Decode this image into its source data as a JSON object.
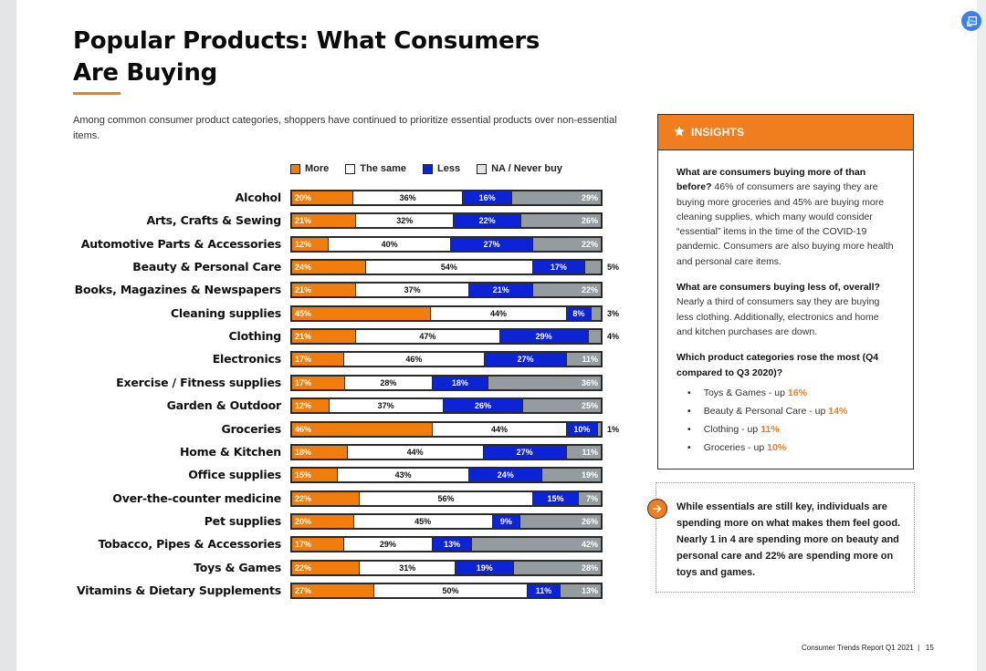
{
  "page": {
    "title": "Popular Products: What Consumers Are Buying",
    "subtitle": "Among common consumer product categories, shoppers have continued to prioritize essential products over non-essential items.",
    "footer": "Consumer Trends Report Q1 2021  |   15"
  },
  "colors": {
    "more": "#f07d0c",
    "same": "#ffffff",
    "less": "#0d23d6",
    "na": "#959c9f",
    "accent": "#f07d1e"
  },
  "chart_data": {
    "type": "bar",
    "orientation": "horizontal-stacked-100",
    "title": "",
    "xlabel": "",
    "ylabel": "",
    "legend_position": "top",
    "series_names": [
      "More",
      "The same",
      "Less",
      "NA / Never buy"
    ],
    "categories": [
      "Alcohol",
      "Arts, Crafts & Sewing",
      "Automotive Parts & Accessories",
      "Beauty & Personal Care",
      "Books, Magazines & Newspapers",
      "Cleaning supplies",
      "Clothing",
      "Electronics",
      "Exercise / Fitness supplies",
      "Garden & Outdoor",
      "Groceries",
      "Home & Kitchen",
      "Office supplies",
      "Over-the-counter medicine",
      "Pet supplies",
      "Tobacco, Pipes & Accessories",
      "Toys & Games",
      "Vitamins & Dietary Supplements"
    ],
    "series": [
      {
        "name": "More",
        "key": "more",
        "values": [
          20,
          21,
          12,
          24,
          21,
          45,
          21,
          17,
          17,
          12,
          46,
          18,
          15,
          22,
          20,
          17,
          22,
          27
        ]
      },
      {
        "name": "The same",
        "key": "same",
        "values": [
          36,
          32,
          40,
          54,
          37,
          44,
          47,
          46,
          28,
          37,
          44,
          44,
          43,
          56,
          45,
          29,
          31,
          50
        ]
      },
      {
        "name": "Less",
        "key": "less",
        "values": [
          16,
          22,
          27,
          17,
          21,
          8,
          29,
          27,
          18,
          26,
          10,
          27,
          24,
          15,
          9,
          13,
          19,
          11
        ]
      },
      {
        "name": "NA / Never buy",
        "key": "na",
        "values": [
          29,
          26,
          22,
          5,
          22,
          3,
          4,
          11,
          36,
          25,
          1,
          11,
          19,
          7,
          26,
          42,
          28,
          13
        ]
      }
    ],
    "xlim": [
      0,
      100
    ],
    "unit": "%"
  },
  "insights": {
    "header": "INSIGHTS",
    "q1_bold": "What are consumers buying more of than before?",
    "q1_text": " 46% of consumers are saying they are buying more groceries and 45% are buying more cleaning supplies, which many would consider “essential” items in the time of the COVID-19 pandemic. Consumers are also buying more health and personal care items.",
    "q2_bold": "What are consumers buying less of, overall?",
    "q2_text": "Nearly a third of consumers say they are buying less clothing. Additionally, electronics and home and kitchen purchases are down.",
    "q3_bold": "Which product categories rose the most (Q4 compared to Q3 2020)?",
    "rose": [
      {
        "label": "Toys & Games - up ",
        "pct": "16%"
      },
      {
        "label": "Beauty & Personal Care - up ",
        "pct": "14%"
      },
      {
        "label": "Clothing - up ",
        "pct": "11%"
      },
      {
        "label": "Groceries - up ",
        "pct": "10%"
      }
    ]
  },
  "callout": {
    "text": "While essentials are still key, individuals are spending more on what makes them feel good. Nearly 1 in 4 are spending more on beauty and personal care and 22% are spending more on toys and games."
  }
}
